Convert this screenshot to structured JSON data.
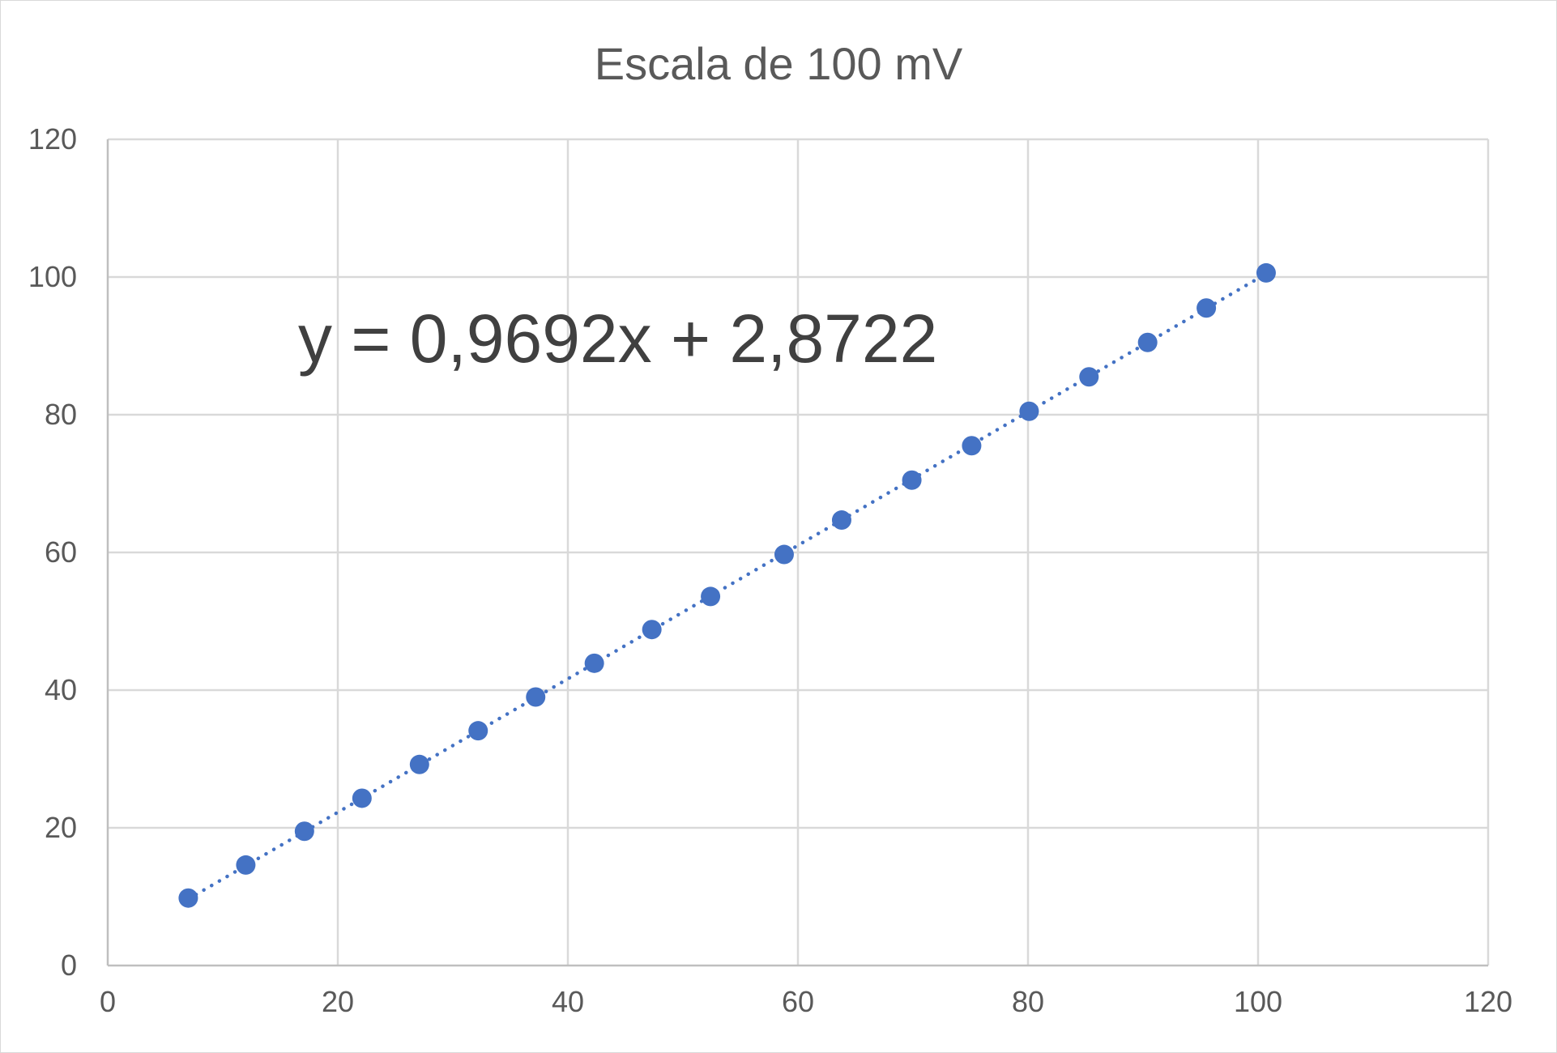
{
  "chart_data": {
    "type": "scatter",
    "title": "Escala de 100 mV",
    "xlabel": "",
    "ylabel": "",
    "xlim": [
      0,
      120
    ],
    "ylim": [
      0,
      120
    ],
    "x_ticks": [
      0,
      20,
      40,
      60,
      80,
      100,
      120
    ],
    "y_ticks": [
      0,
      20,
      40,
      60,
      80,
      100,
      120
    ],
    "grid": true,
    "legend": "none",
    "series": [
      {
        "color": "#4472C4",
        "points": [
          {
            "x": 7.0,
            "y": 9.8
          },
          {
            "x": 12.0,
            "y": 14.6
          },
          {
            "x": 17.1,
            "y": 19.5
          },
          {
            "x": 22.1,
            "y": 24.3
          },
          {
            "x": 27.1,
            "y": 29.2
          },
          {
            "x": 32.2,
            "y": 34.1
          },
          {
            "x": 37.2,
            "y": 39.0
          },
          {
            "x": 42.3,
            "y": 43.9
          },
          {
            "x": 47.3,
            "y": 48.8
          },
          {
            "x": 52.4,
            "y": 53.6
          },
          {
            "x": 58.8,
            "y": 59.7
          },
          {
            "x": 63.8,
            "y": 64.7
          },
          {
            "x": 69.9,
            "y": 70.5
          },
          {
            "x": 75.1,
            "y": 75.5
          },
          {
            "x": 80.1,
            "y": 80.5
          },
          {
            "x": 85.3,
            "y": 85.5
          },
          {
            "x": 90.4,
            "y": 90.5
          },
          {
            "x": 95.5,
            "y": 95.5
          },
          {
            "x": 100.7,
            "y": 100.6
          }
        ]
      }
    ],
    "trendline": {
      "type": "linear",
      "style": "dotted",
      "color": "#4472C4",
      "slope": 0.9692,
      "intercept": 2.8722,
      "equation_label": "y = 0,9692x + 2,8722"
    }
  }
}
